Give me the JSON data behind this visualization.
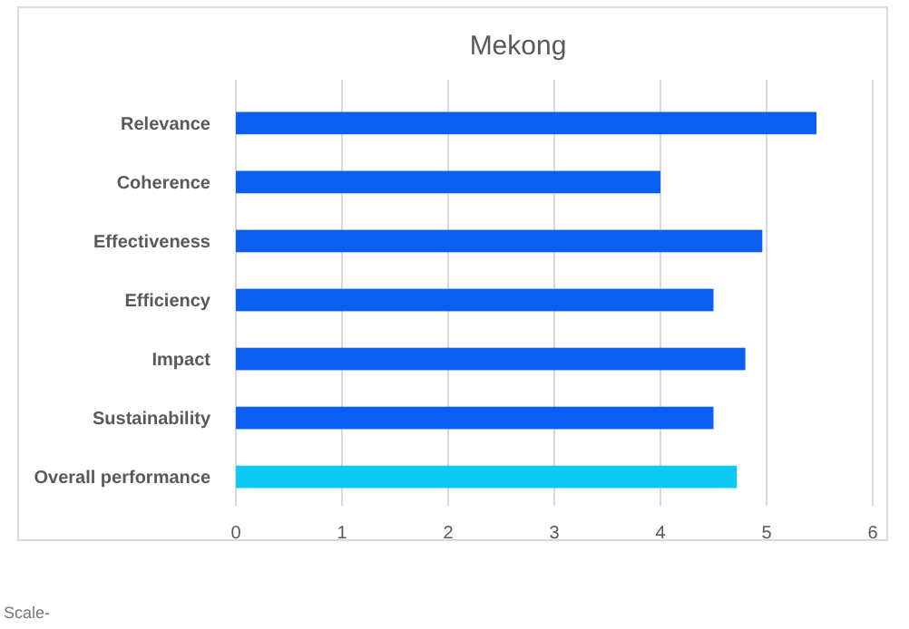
{
  "chart_data": {
    "type": "bar",
    "orientation": "horizontal",
    "title": "Mekong",
    "categories": [
      "Relevance",
      "Coherence",
      "Effectiveness",
      "Efficiency",
      "Impact",
      "Sustainability",
      "Overall performance"
    ],
    "values": [
      5.47,
      4.0,
      4.96,
      4.5,
      4.8,
      4.5,
      4.72
    ],
    "colors": [
      "#0a5ff0",
      "#0a5ff0",
      "#0a5ff0",
      "#0a5ff0",
      "#0a5ff0",
      "#0a5ff0",
      "#0cc8f2"
    ],
    "xlim": [
      0,
      6
    ],
    "xticks": [
      0,
      1,
      2,
      3,
      4,
      5,
      6
    ],
    "grid": "x",
    "annotations": [
      "Scale-"
    ]
  }
}
